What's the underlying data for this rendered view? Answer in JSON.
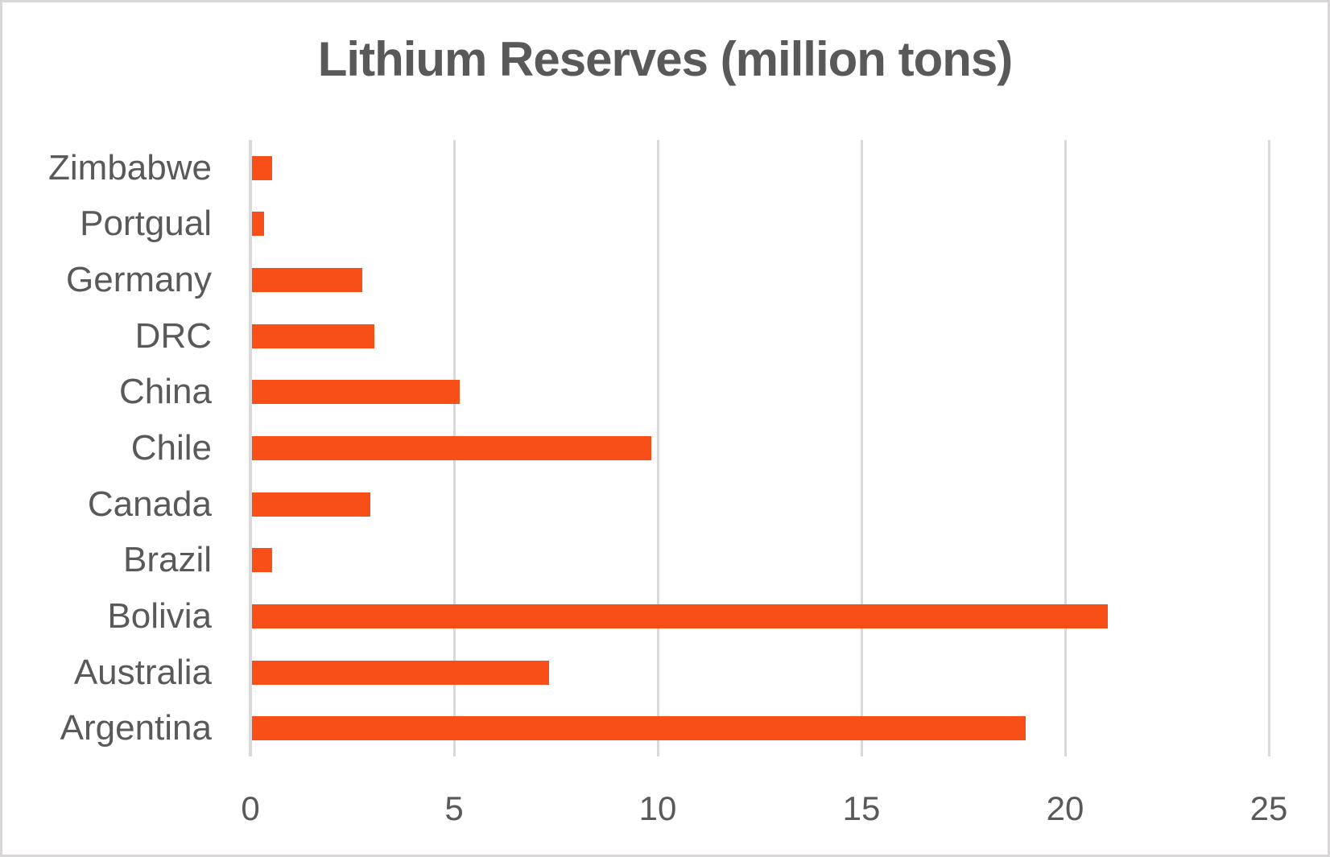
{
  "window": {
    "background": "#ffffff",
    "border_color": "#d8d6d6"
  },
  "chart_data": {
    "type": "bar",
    "orientation": "horizontal",
    "title": "Lithium Reserves (million tons)",
    "categories": [
      "Zimbabwe",
      "Portgual",
      "Germany",
      "DRC",
      "China",
      "Chile",
      "Canada",
      "Brazil",
      "Bolivia",
      "Australia",
      "Argentina"
    ],
    "category_order": "top-to-bottom",
    "values": [
      0.5,
      0.3,
      2.7,
      3,
      5.1,
      9.8,
      2.9,
      0.5,
      21,
      7.3,
      19
    ],
    "xlabel": "",
    "ylabel": "",
    "xlim": [
      0,
      25
    ],
    "xticks": [
      0,
      5,
      10,
      15,
      20,
      25
    ],
    "grid": "vertical-only",
    "legend": "none",
    "bar_color": "#f84e17",
    "gridline_color": "#d9d9d9",
    "axis_line_color": "#d9d9d9",
    "label_color": "#595959",
    "title_color": "#595959"
  }
}
